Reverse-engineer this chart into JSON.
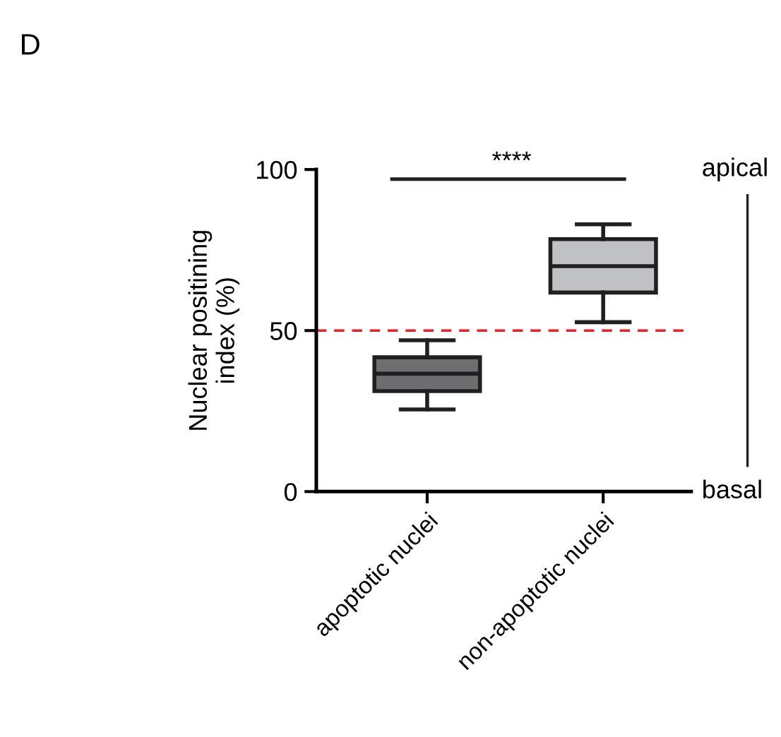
{
  "chart_data": {
    "type": "box",
    "title": "D",
    "ylabel": "Nuclear positining\nindex (%)",
    "categories": [
      "apoptotic nuclei",
      "non-apoptotic nuclei"
    ],
    "colors": [
      "#6d6e70",
      "#c0c1c3"
    ],
    "boxes": [
      {
        "low": 25.5,
        "q1": 31.2,
        "median": 36.6,
        "q3": 41.7,
        "high": 47
      },
      {
        "low": 52.6,
        "q1": 61.8,
        "median": 70,
        "q3": 78.4,
        "high": 83
      }
    ],
    "ylim": [
      0,
      100
    ],
    "yticks": [
      0,
      50,
      100
    ],
    "grid": false,
    "legend": false,
    "ref_lines": [
      {
        "axis": "y",
        "value": 50,
        "color": "#e8202a",
        "line_style": "dashed"
      }
    ],
    "annotations": [
      "****",
      "apical",
      "basal"
    ]
  }
}
